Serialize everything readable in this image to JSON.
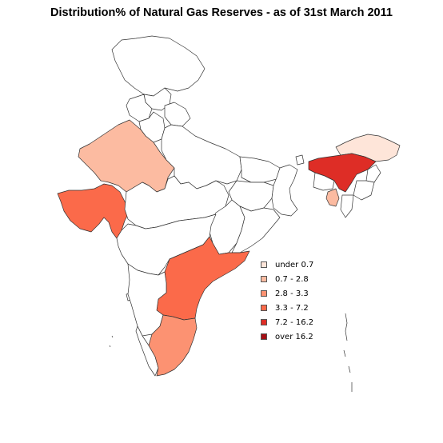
{
  "title": "Distribution% of Natural Gas Reserves - as of 31st March 2011",
  "legend": {
    "items": [
      {
        "label": "under 0.7",
        "color": "#fee5d9"
      },
      {
        "label": "0.7 - 2.8",
        "color": "#fcbba1"
      },
      {
        "label": "2.8 - 3.3",
        "color": "#fc9272"
      },
      {
        "label": "3.3 - 7.2",
        "color": "#fb6a4a"
      },
      {
        "label": "7.2 - 16.2",
        "color": "#de2d26"
      },
      {
        "label": "over 16.2",
        "color": "#a50f15"
      }
    ]
  },
  "map_data": {
    "regions": [
      {
        "name": "Jammu and Kashmir",
        "category": null
      },
      {
        "name": "Himachal Pradesh",
        "category": null
      },
      {
        "name": "Punjab",
        "category": null
      },
      {
        "name": "Uttarakhand",
        "category": null
      },
      {
        "name": "Haryana",
        "category": null
      },
      {
        "name": "Rajasthan",
        "category": "0.7 - 2.8"
      },
      {
        "name": "Uttar Pradesh",
        "category": null
      },
      {
        "name": "Gujarat",
        "category": "3.3 - 7.2"
      },
      {
        "name": "Madhya Pradesh",
        "category": null
      },
      {
        "name": "Bihar",
        "category": null
      },
      {
        "name": "Jharkhand",
        "category": null
      },
      {
        "name": "West Bengal",
        "category": null
      },
      {
        "name": "Chhattisgarh",
        "category": null
      },
      {
        "name": "Odisha",
        "category": null
      },
      {
        "name": "Maharashtra",
        "category": null
      },
      {
        "name": "Andhra Pradesh",
        "category": "3.3 - 7.2"
      },
      {
        "name": "Karnataka",
        "category": null
      },
      {
        "name": "Goa",
        "category": null
      },
      {
        "name": "Kerala",
        "category": null
      },
      {
        "name": "Tamil Nadu",
        "category": "2.8 - 3.3"
      },
      {
        "name": "Sikkim",
        "category": null
      },
      {
        "name": "Assam",
        "category": "7.2 - 16.2"
      },
      {
        "name": "Arunachal Pradesh",
        "category": "under 0.7"
      },
      {
        "name": "Nagaland",
        "category": null
      },
      {
        "name": "Manipur",
        "category": null
      },
      {
        "name": "Meghalaya",
        "category": null
      },
      {
        "name": "Tripura",
        "category": "0.7 - 2.8"
      },
      {
        "name": "Mizoram",
        "category": null
      },
      {
        "name": "Andaman and Nicobar Islands",
        "category": null
      }
    ]
  }
}
